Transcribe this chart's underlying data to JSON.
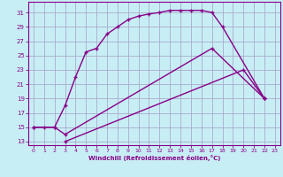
{
  "xlabel": "Windchill (Refroidissement éolien,°C)",
  "bg_color": "#c8eef5",
  "line_color": "#880088",
  "grid_color": "#aaaacc",
  "xlim": [
    -0.5,
    23.5
  ],
  "ylim": [
    12.5,
    32.5
  ],
  "xticks": [
    0,
    1,
    2,
    3,
    4,
    5,
    6,
    7,
    8,
    9,
    10,
    11,
    12,
    13,
    14,
    15,
    16,
    17,
    18,
    19,
    20,
    21,
    22,
    23
  ],
  "yticks": [
    13,
    15,
    17,
    19,
    21,
    23,
    25,
    27,
    29,
    31
  ],
  "line1_x": [
    0,
    1,
    2,
    3,
    4,
    5,
    6,
    7,
    8,
    9,
    10,
    11,
    12,
    13,
    14,
    15,
    16,
    17,
    18,
    22
  ],
  "line1_y": [
    15,
    15,
    15,
    18,
    22,
    25.5,
    26,
    28,
    29,
    30,
    30.5,
    30.8,
    31,
    31.3,
    31.3,
    31.3,
    31.3,
    31,
    29,
    19
  ],
  "line2_x": [
    0,
    2,
    3,
    17,
    22
  ],
  "line2_y": [
    15,
    15,
    14,
    26,
    19
  ],
  "line3_x": [
    3,
    20,
    22
  ],
  "line3_y": [
    13,
    23,
    19
  ]
}
